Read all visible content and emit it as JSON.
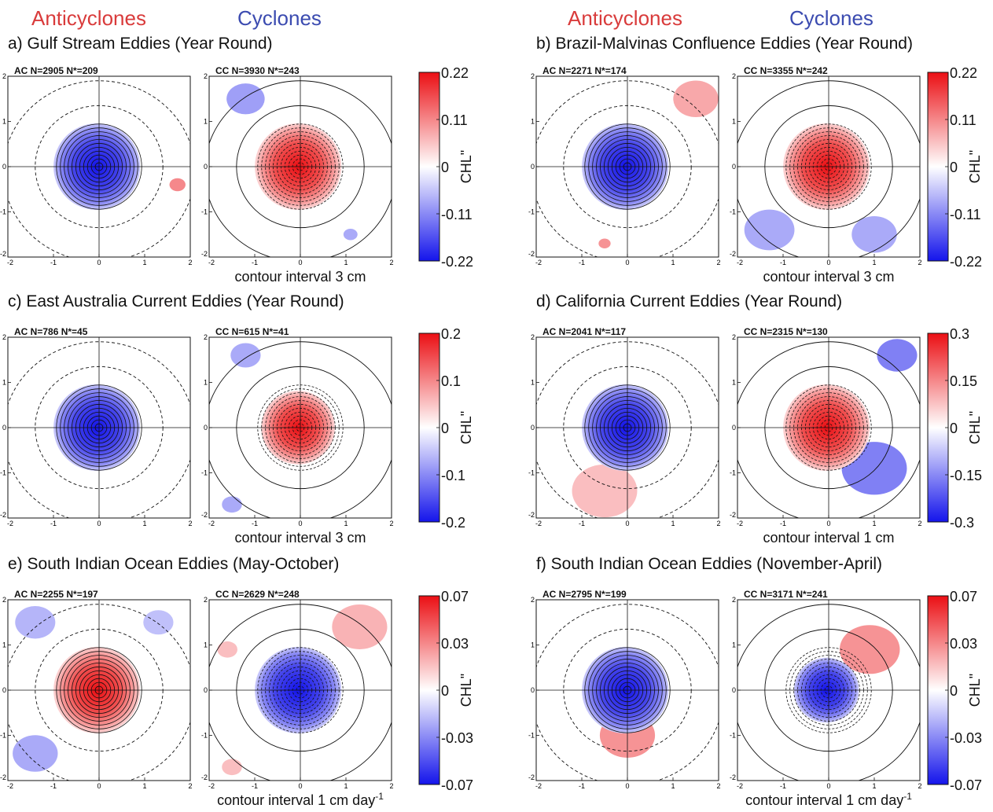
{
  "header": {
    "anticyclones_label": "Anticyclones",
    "cyclones_label": "Cyclones",
    "anticyclone_color": "#d93b3b",
    "cyclone_color": "#3b4bb0"
  },
  "colorbar_label": "CHL\"",
  "chart_data": [
    {
      "type": "heatmap",
      "title": "a) Gulf Stream Eddies (Year Round)",
      "contour_text": "contour interval 3 cm",
      "colorbar_ticks": [
        "0.22",
        "0.11",
        "0",
        "-0.11",
        "-0.22"
      ],
      "clim": [
        -0.22,
        0.22
      ],
      "ac": {
        "label": "AC N=2905",
        "nstar": "N*=209",
        "core": -0.85,
        "patches": [
          {
            "x": 1.72,
            "y": -0.4,
            "r": 0.16,
            "v": 0.55
          }
        ]
      },
      "cc": {
        "label": "CC N=3930",
        "nstar": "N*=243",
        "core": 0.85,
        "patches": [
          {
            "x": -1.2,
            "y": 1.5,
            "r": 0.38,
            "v": -0.45
          },
          {
            "x": 1.1,
            "y": -1.5,
            "r": 0.14,
            "v": -0.4
          }
        ]
      },
      "xlim": [
        -2,
        2
      ],
      "ylim": [
        -2,
        2
      ],
      "xticks": [
        "-2",
        "-1",
        "0",
        "1",
        "2"
      ],
      "yticks": [
        "2",
        "1",
        "0",
        "-1",
        "-2"
      ]
    },
    {
      "type": "heatmap",
      "title": "b) Brazil-Malvinas Confluence Eddies (Year Round)",
      "contour_text": "contour interval 3 cm",
      "colorbar_ticks": [
        "0.22",
        "0.11",
        "0",
        "-0.11",
        "-0.22"
      ],
      "clim": [
        -0.22,
        0.22
      ],
      "ac": {
        "label": "AC N=2271",
        "nstar": "N*=174",
        "core": -0.85,
        "patches": [
          {
            "x": 1.5,
            "y": 1.5,
            "r": 0.45,
            "v": 0.4
          },
          {
            "x": -0.5,
            "y": -1.7,
            "r": 0.12,
            "v": 0.5
          }
        ]
      },
      "cc": {
        "label": "CC N=3355",
        "nstar": "N*=242",
        "core": 0.85,
        "patches": [
          {
            "x": -1.3,
            "y": -1.4,
            "r": 0.5,
            "v": -0.4
          },
          {
            "x": 1.0,
            "y": -1.5,
            "r": 0.45,
            "v": -0.4
          }
        ]
      },
      "xlim": [
        -2,
        2
      ],
      "ylim": [
        -2,
        2
      ],
      "xticks": [
        "-2",
        "-1",
        "0",
        "1",
        "2"
      ],
      "yticks": [
        "2",
        "1",
        "0",
        "-1",
        "-2"
      ]
    },
    {
      "type": "heatmap",
      "title": "c) East Australia Current Eddies (Year Round)",
      "contour_text": "contour interval 3 cm",
      "colorbar_ticks": [
        "0.2",
        "0.1",
        "0",
        "-0.1",
        "-0.2"
      ],
      "clim": [
        -0.2,
        0.2
      ],
      "ac": {
        "label": "AC N=786",
        "nstar": "N*=45",
        "core": -0.85,
        "patches": []
      },
      "cc": {
        "label": "CC N=615",
        "nstar": "N*=41",
        "core": 0.7,
        "patches": [
          {
            "x": -1.2,
            "y": 1.6,
            "r": 0.3,
            "v": -0.4
          },
          {
            "x": -1.5,
            "y": -1.7,
            "r": 0.2,
            "v": -0.4
          }
        ]
      },
      "xlim": [
        -2,
        2
      ],
      "ylim": [
        -2,
        2
      ],
      "xticks": [
        "-2",
        "-1",
        "0",
        "1",
        "2"
      ],
      "yticks": [
        "2",
        "1",
        "0",
        "-1",
        "-2"
      ]
    },
    {
      "type": "heatmap",
      "title": "d) California Current Eddies (Year Round)",
      "contour_text": "contour interval 1 cm",
      "colorbar_ticks": [
        "0.3",
        "0.15",
        "0",
        "-0.15",
        "-0.3"
      ],
      "clim": [
        -0.3,
        0.3
      ],
      "ac": {
        "label": "AC N=2041",
        "nstar": "N*=117",
        "core": -0.85,
        "patches": [
          {
            "x": -0.5,
            "y": -1.4,
            "r": 0.65,
            "v": 0.3
          }
        ]
      },
      "cc": {
        "label": "CC N=2315",
        "nstar": "N*=130",
        "core": 0.85,
        "patches": [
          {
            "x": 1.0,
            "y": -0.9,
            "r": 0.65,
            "v": -0.6
          },
          {
            "x": 1.5,
            "y": 1.6,
            "r": 0.4,
            "v": -0.6
          }
        ]
      },
      "xlim": [
        -2,
        2
      ],
      "ylim": [
        -2,
        2
      ],
      "xticks": [
        "-2",
        "-1",
        "0",
        "1",
        "2"
      ],
      "yticks": [
        "2",
        "1",
        "0",
        "-1",
        "-2"
      ]
    },
    {
      "type": "heatmap",
      "title": "e) South Indian Ocean Eddies (May-October)",
      "contour_text": "contour interval 1 cm day",
      "contour_exp": "-1",
      "colorbar_ticks": [
        "0.07",
        "0.03",
        "0",
        "-0.03",
        "-0.07"
      ],
      "clim": [
        -0.07,
        0.07
      ],
      "ac": {
        "label": "AC N=2255",
        "nstar": "N*=197",
        "core": 0.85,
        "patches": [
          {
            "x": -1.4,
            "y": 1.5,
            "r": 0.4,
            "v": -0.35
          },
          {
            "x": -1.4,
            "y": -1.4,
            "r": 0.45,
            "v": -0.4
          },
          {
            "x": 1.3,
            "y": 1.5,
            "r": 0.3,
            "v": -0.3
          }
        ]
      },
      "cc": {
        "label": "CC N=2629",
        "nstar": "N*=248",
        "core": -0.85,
        "patches": [
          {
            "x": 1.3,
            "y": 1.4,
            "r": 0.55,
            "v": 0.35
          },
          {
            "x": -1.6,
            "y": 0.9,
            "r": 0.2,
            "v": 0.3
          },
          {
            "x": -1.5,
            "y": -1.7,
            "r": 0.2,
            "v": 0.3
          }
        ]
      },
      "xlim": [
        -2,
        2
      ],
      "ylim": [
        -2,
        2
      ],
      "xticks": [
        "-2",
        "-1",
        "0",
        "1",
        "2"
      ],
      "yticks": [
        "2",
        "1",
        "0",
        "-1",
        "-2"
      ]
    },
    {
      "type": "heatmap",
      "title": "f) South Indian Ocean Eddies (November-April)",
      "contour_text": "contour interval 1 cm day",
      "contour_exp": "-1",
      "colorbar_ticks": [
        "0.07",
        "0.03",
        "0",
        "-0.03",
        "-0.07"
      ],
      "clim": [
        -0.07,
        0.07
      ],
      "ac": {
        "label": "AC N=2795",
        "nstar": "N*=199",
        "core": -0.85,
        "patches": [
          {
            "x": 0.0,
            "y": -1.0,
            "r": 0.55,
            "v": 0.5
          }
        ]
      },
      "cc": {
        "label": "CC N=3171",
        "nstar": "N*=241",
        "core": -0.6,
        "patches": [
          {
            "x": 0.9,
            "y": 0.9,
            "r": 0.6,
            "v": 0.5
          }
        ]
      },
      "xlim": [
        -2,
        2
      ],
      "ylim": [
        -2,
        2
      ],
      "xticks": [
        "-2",
        "-1",
        "0",
        "1",
        "2"
      ],
      "yticks": [
        "2",
        "1",
        "0",
        "-1",
        "-2"
      ]
    }
  ]
}
